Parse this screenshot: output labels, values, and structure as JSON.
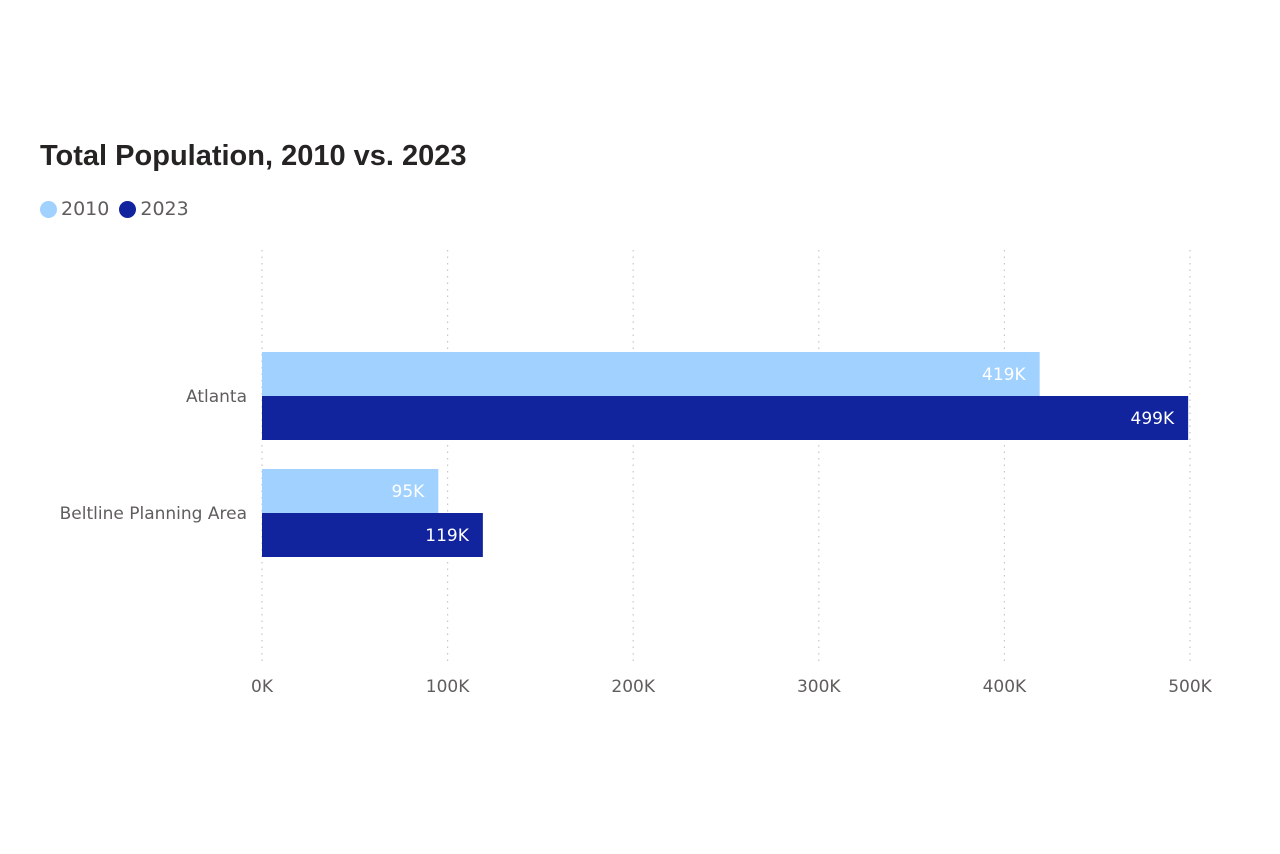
{
  "chart_data": {
    "type": "bar",
    "orientation": "horizontal",
    "title": "Total Population, 2010 vs. 2023",
    "categories": [
      "Atlanta",
      "Beltline Planning Area"
    ],
    "series": [
      {
        "name": "2010",
        "color": "#a0d1ff",
        "values": [
          419000,
          95000
        ],
        "labels": [
          "419K",
          "95K"
        ]
      },
      {
        "name": "2023",
        "color": "#12239e",
        "values": [
          499000,
          119000
        ],
        "labels": [
          "499K",
          "119K"
        ]
      }
    ],
    "xlim": [
      0,
      500000
    ],
    "x_ticks": [
      0,
      100000,
      200000,
      300000,
      400000,
      500000
    ],
    "x_tick_labels": [
      "0K",
      "100K",
      "200K",
      "300K",
      "400K",
      "500K"
    ],
    "xlabel": "",
    "ylabel": "",
    "grid": "vertical-dotted",
    "legend_position": "top-left"
  }
}
